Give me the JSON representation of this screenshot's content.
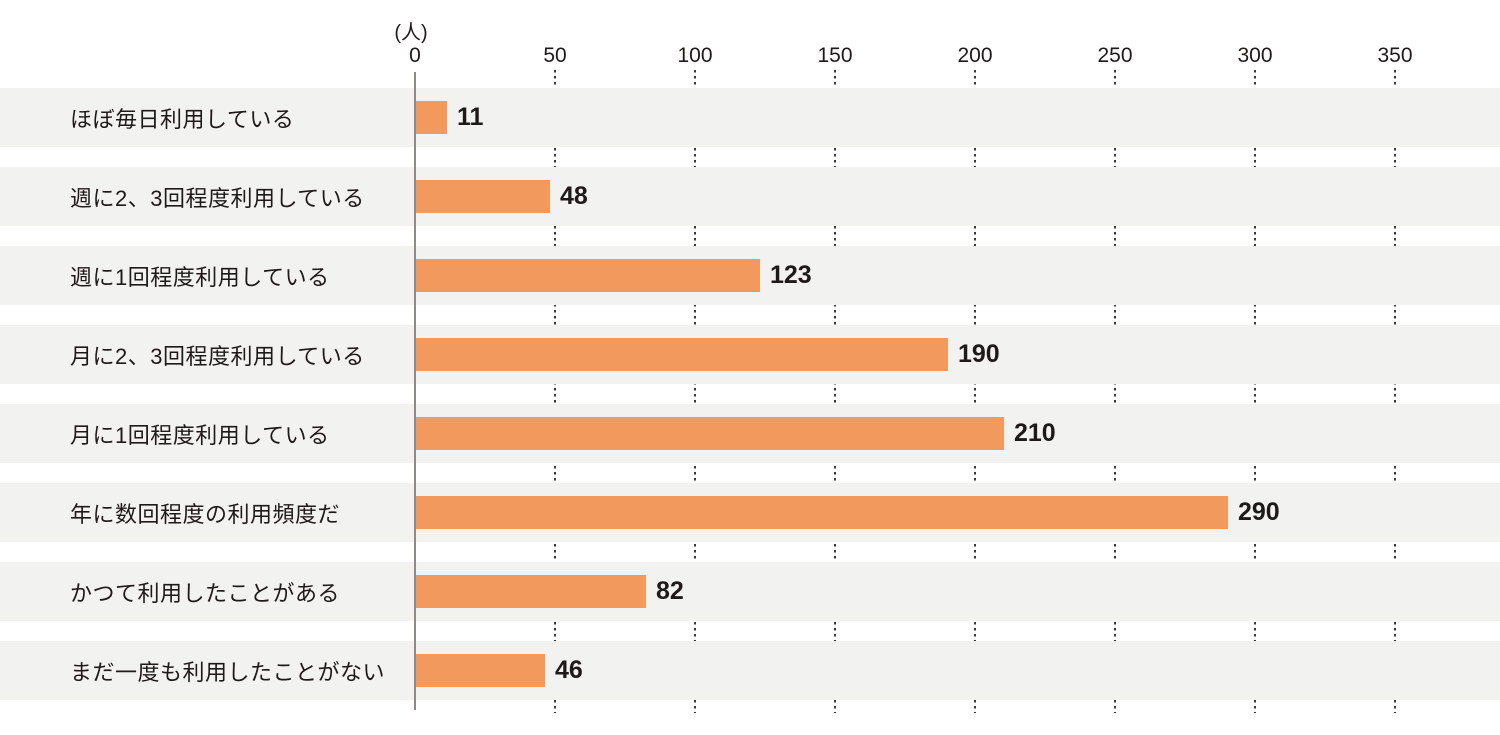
{
  "chart_data": {
    "type": "bar",
    "orientation": "horizontal",
    "title": "",
    "xlabel": "(人)",
    "ylabel": "",
    "xlim": [
      0,
      387
    ],
    "ticks": [
      0,
      50,
      100,
      150,
      200,
      250,
      300,
      350
    ],
    "grid": "vertical dotted lines at 50-unit intervals, visible only between row bands",
    "legend": "none",
    "categories": [
      "ほぼ毎日利用している",
      "週に2、3回程度利用している",
      "週に1回程度利用している",
      "月に2、3回程度利用している",
      "月に1回程度利用している",
      "年に数回程度の利用頻度だ",
      "かつて利用したことがある",
      "まだ一度も利用したことがない"
    ],
    "values": [
      11,
      48,
      123,
      190,
      210,
      290,
      82,
      46
    ]
  },
  "axis": {
    "unit_label": "(人)"
  },
  "colors": {
    "bar": "#f2995e",
    "band": "#f2f2f1",
    "axis_line": "#8d8a87",
    "grid_dot": "#3a3a3a",
    "text": "#1e1a19",
    "background": "#ffffff"
  }
}
